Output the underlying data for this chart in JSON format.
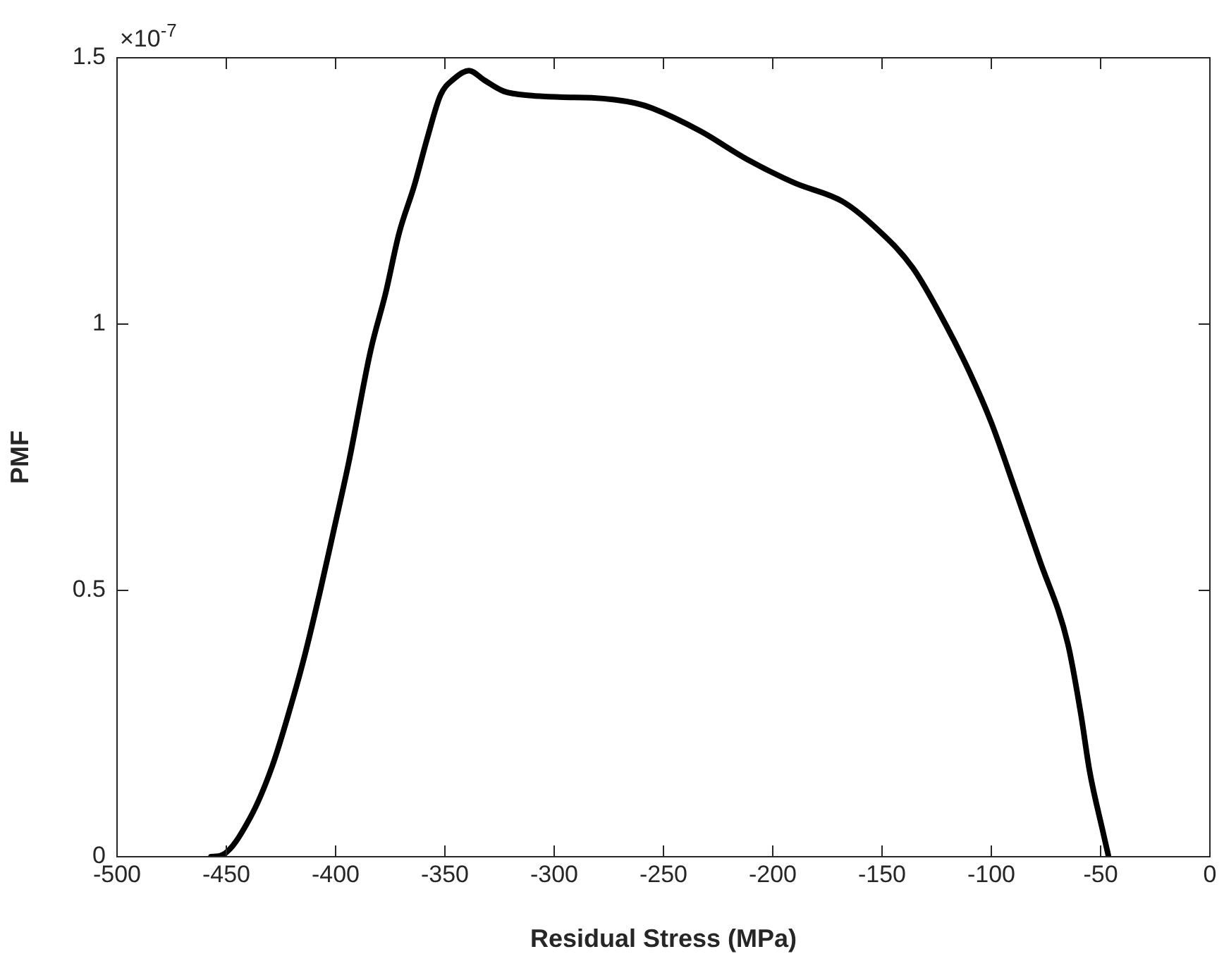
{
  "chart_data": {
    "type": "line",
    "xlabel": "Residual Stress (MPa)",
    "ylabel": "PMF",
    "annotations": [
      "×10$^{-7}$"
    ],
    "xlim": [
      -500,
      0
    ],
    "xticks": [
      -500,
      -450,
      -400,
      -350,
      -300,
      -250,
      -200,
      -150,
      -100,
      -50,
      0
    ],
    "ylim": [
      0,
      1.5
    ],
    "yticks": [
      0,
      0.5,
      1,
      1.5
    ],
    "grid": false,
    "legend": false,
    "marker": "none",
    "line_style": "solid",
    "series": [
      {
        "color": "#000000",
        "x": [
          -457,
          -452,
          -439,
          -429,
          -420,
          -414,
          -407,
          -401,
          -394,
          -384,
          -377,
          -371,
          -364,
          -358,
          -352,
          -346,
          -339,
          -332,
          -323,
          -310,
          -296,
          -283,
          -263,
          -255,
          -233,
          -212,
          -190,
          -168,
          -154,
          -136,
          -121,
          -110,
          -100,
          -89,
          -78,
          -65,
          -59,
          -55,
          -49,
          -46.5
        ],
        "values": [
          0,
          0.003,
          0.074,
          0.17,
          0.29,
          0.38,
          0.5,
          0.61,
          0.74,
          0.95,
          1.06,
          1.17,
          1.26,
          1.35,
          1.43,
          1.46,
          1.476,
          1.458,
          1.437,
          1.429,
          1.426,
          1.425,
          1.415,
          1.405,
          1.362,
          1.31,
          1.265,
          1.23,
          1.185,
          1.106,
          1.0,
          0.91,
          0.815,
          0.688,
          0.558,
          0.4,
          0.267,
          0.16,
          0.048,
          0.003
        ]
      }
    ]
  }
}
